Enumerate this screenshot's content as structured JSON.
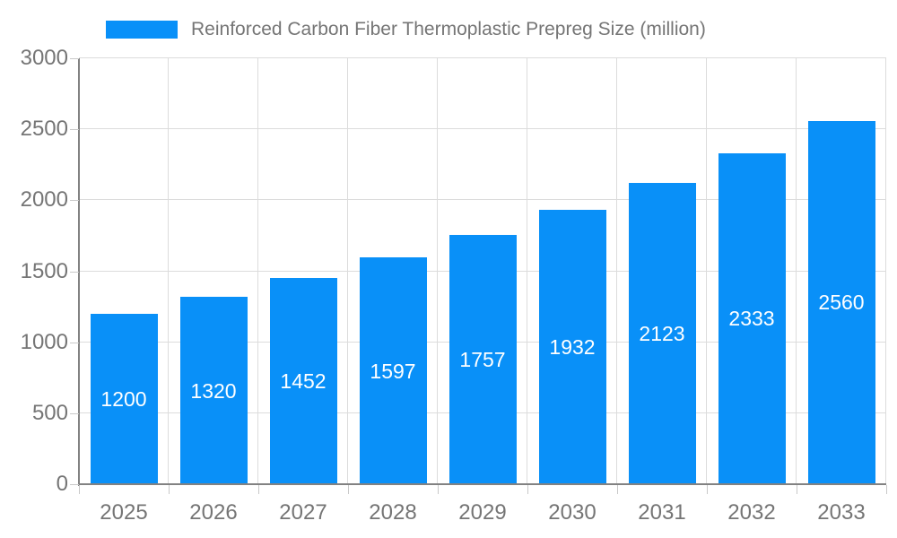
{
  "chart": {
    "bar_color": "#0990f8",
    "label_text_color": "#757575",
    "value_label_color": "#ffffff"
  },
  "chart_data": {
    "type": "bar",
    "title": "Reinforced Carbon Fiber Thermoplastic Prepreg Size (million)",
    "categories": [
      "2025",
      "2026",
      "2027",
      "2028",
      "2029",
      "2030",
      "2031",
      "2032",
      "2033"
    ],
    "values": [
      1200,
      1320,
      1452,
      1597,
      1757,
      1932,
      2123,
      2333,
      2560
    ],
    "xlabel": "",
    "ylabel": "",
    "ylim": [
      0,
      3000
    ],
    "yticks": [
      0,
      500,
      1000,
      1500,
      2000,
      2500,
      3000
    ],
    "grid": true,
    "legend_position": "top",
    "value_labels": "inside-center"
  }
}
